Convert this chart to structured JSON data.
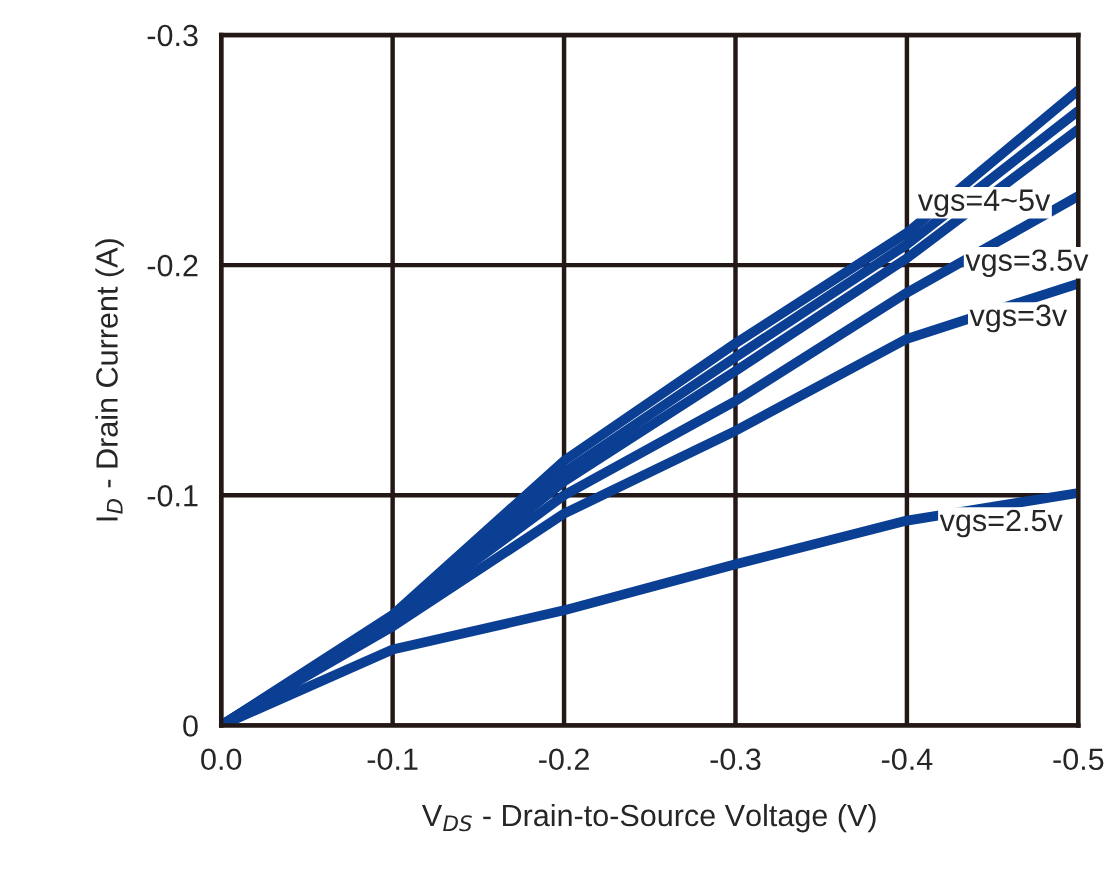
{
  "chart_data": {
    "type": "line",
    "xlabel": "V$_{DS}$ - Drain-to-Source Voltage (V)",
    "ylabel": "I$_{D}$ - Drain Current (A)",
    "x": [
      0,
      -0.1,
      -0.2,
      -0.3,
      -0.4,
      -0.5
    ],
    "series": [
      {
        "color": "#0b3f94",
        "values": [
          0,
          -0.048,
          -0.115,
          -0.166,
          -0.214,
          -0.276
        ]
      },
      {
        "color": "#0b3f94",
        "values": [
          0,
          -0.047,
          -0.11,
          -0.16,
          -0.209,
          -0.267
        ]
      },
      {
        "color": "#0b3f94",
        "values": [
          0,
          -0.046,
          -0.106,
          -0.154,
          -0.203,
          -0.259
        ]
      },
      {
        "color": "#0b3f94",
        "values": [
          0,
          -0.045,
          -0.1,
          -0.141,
          -0.188,
          -0.23
        ]
      },
      {
        "color": "#0b3f94",
        "values": [
          0,
          -0.043,
          -0.092,
          -0.128,
          -0.168,
          -0.192
        ]
      },
      {
        "color": "#0b3f94",
        "values": [
          0,
          -0.033,
          -0.05,
          -0.07,
          -0.089,
          -0.101
        ]
      }
    ],
    "xlim": [
      0,
      -0.5
    ],
    "ylim": [
      0,
      -0.3
    ],
    "xticks": [
      {
        "value": 0,
        "label": "0.0"
      },
      -0.1,
      -0.2,
      -0.3,
      -0.4,
      -0.5
    ],
    "yticks": [
      0,
      -0.1,
      -0.2,
      -0.3
    ],
    "grid": true,
    "legend": false,
    "marker": "none",
    "line_style": "solid",
    "annotations": [
      "vgs=4~5v",
      "vgs=3.5v",
      "vgs=3v",
      "vgs=2.5v"
    ]
  }
}
